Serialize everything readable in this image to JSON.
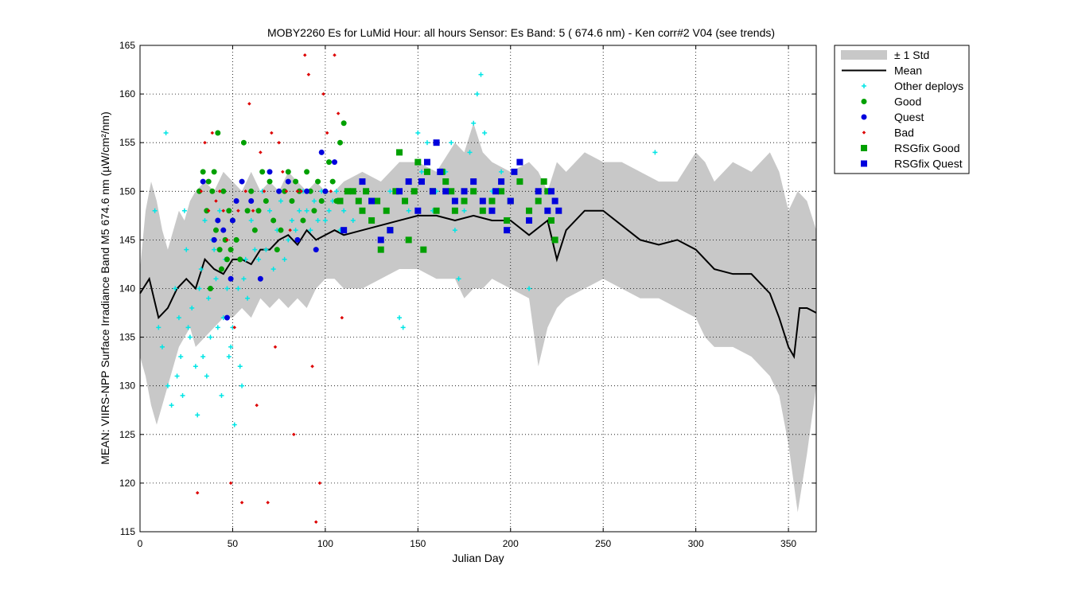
{
  "chart_data": {
    "type": "scatter",
    "title": "MOBY2260   Es for LuMid  Hour: all hours  Sensor: Es Band: 5 ( 674.6 nm)  - Ken corr#2 V04 (see trends)",
    "xlabel": "Julian Day",
    "ylabel": "MEAN: VIIRS-NPP Surface Irradiance Band M5 674.6 nm (µW/cm²/nm)",
    "xlim": [
      0,
      365
    ],
    "ylim": [
      115,
      165
    ],
    "xticks": [
      0,
      50,
      100,
      150,
      200,
      250,
      300,
      350
    ],
    "yticks": [
      115,
      120,
      125,
      130,
      135,
      140,
      145,
      150,
      155,
      160,
      165
    ],
    "grid": true,
    "legend_position": "outside-top-right",
    "legend": [
      {
        "label": "± 1 Std",
        "kind": "patch",
        "color": "#c8c8c8"
      },
      {
        "label": "Mean",
        "kind": "line",
        "color": "#000000"
      },
      {
        "label": "Other deploys",
        "kind": "plus",
        "color": "#00e5e5"
      },
      {
        "label": "Good",
        "kind": "circle",
        "color": "#00a000"
      },
      {
        "label": "Quest",
        "kind": "circle",
        "color": "#0000dd"
      },
      {
        "label": "Bad",
        "kind": "diamond",
        "color": "#dd0000"
      },
      {
        "label": "RSGfix Good",
        "kind": "square",
        "color": "#00a000"
      },
      {
        "label": "RSGfix Quest",
        "kind": "square",
        "color": "#0000dd"
      }
    ],
    "mean": {
      "x": [
        0,
        5,
        10,
        15,
        20,
        25,
        30,
        35,
        40,
        45,
        50,
        55,
        60,
        65,
        70,
        75,
        80,
        85,
        90,
        95,
        100,
        105,
        110,
        120,
        130,
        140,
        150,
        160,
        170,
        180,
        190,
        200,
        210,
        220,
        225,
        230,
        240,
        250,
        260,
        270,
        280,
        290,
        300,
        310,
        320,
        330,
        340,
        345,
        350,
        353,
        356,
        360,
        365
      ],
      "y": [
        139.5,
        141,
        137,
        138,
        140,
        141,
        140,
        143,
        142,
        141.5,
        143,
        143,
        142.5,
        144,
        144,
        145,
        145.5,
        144.5,
        146,
        145,
        145.5,
        146,
        145.5,
        146,
        146.5,
        147,
        147.5,
        147.5,
        147,
        147.5,
        147,
        147,
        145.5,
        147,
        143,
        146,
        148,
        148,
        146.5,
        145,
        144.5,
        145,
        144,
        142,
        141.5,
        141.5,
        139.5,
        137,
        134,
        133,
        138,
        138,
        137.5
      ]
    },
    "std_upper": {
      "x": [
        0,
        3,
        6,
        9,
        12,
        15,
        18,
        21,
        24,
        27,
        30,
        35,
        40,
        45,
        50,
        55,
        60,
        65,
        70,
        75,
        80,
        85,
        90,
        95,
        100,
        105,
        110,
        120,
        130,
        140,
        150,
        160,
        170,
        175,
        180,
        185,
        190,
        200,
        210,
        215,
        220,
        225,
        230,
        240,
        250,
        260,
        270,
        280,
        290,
        300,
        305,
        310,
        320,
        330,
        340,
        345,
        350,
        355,
        360,
        365
      ],
      "y": [
        142,
        148,
        151,
        149,
        146,
        144,
        146,
        148,
        147,
        149,
        150,
        151,
        150,
        152,
        151,
        150,
        152,
        150,
        151,
        150,
        152,
        151,
        150,
        151,
        150,
        150,
        151,
        152,
        151,
        153,
        153,
        152,
        155,
        154,
        157,
        154,
        153,
        152,
        153,
        152,
        150,
        153,
        152,
        154,
        153,
        153,
        152,
        151,
        151,
        154,
        153,
        151,
        153,
        152,
        154,
        152,
        148,
        150,
        149,
        146
      ]
    },
    "std_lower": {
      "x": [
        0,
        3,
        6,
        9,
        12,
        15,
        18,
        21,
        24,
        27,
        30,
        35,
        40,
        45,
        50,
        55,
        60,
        65,
        70,
        75,
        80,
        85,
        90,
        95,
        100,
        105,
        110,
        120,
        130,
        140,
        150,
        160,
        170,
        175,
        180,
        185,
        190,
        200,
        210,
        215,
        220,
        225,
        230,
        240,
        250,
        260,
        270,
        280,
        290,
        300,
        305,
        310,
        320,
        330,
        340,
        345,
        350,
        355,
        360,
        365
      ],
      "y": [
        133,
        131,
        128,
        126,
        128,
        130,
        132,
        134,
        135,
        136,
        134,
        135,
        136,
        137,
        137,
        138,
        137,
        139,
        138,
        139,
        138,
        139,
        138,
        140,
        141,
        141,
        140,
        140,
        141,
        142,
        142,
        141,
        141,
        139,
        140,
        140,
        141,
        140,
        139,
        132,
        136,
        138,
        139,
        140,
        141,
        140,
        139,
        139,
        138,
        137,
        135,
        134,
        134,
        133,
        131,
        129,
        124,
        117,
        123,
        130
      ]
    },
    "series": [
      {
        "name": "Other deploys",
        "marker": "plus",
        "color": "#00e5e5",
        "x": [
          8,
          10,
          12,
          14,
          15,
          17,
          19,
          20,
          21,
          22,
          23,
          24,
          25,
          26,
          27,
          28,
          30,
          31,
          32,
          33,
          34,
          35,
          36,
          37,
          38,
          39,
          40,
          41,
          42,
          43,
          44,
          45,
          46,
          47,
          48,
          49,
          50,
          51,
          52,
          53,
          54,
          55,
          56,
          57,
          58,
          60,
          62,
          64,
          66,
          68,
          70,
          72,
          74,
          76,
          78,
          80,
          82,
          84,
          86,
          88,
          90,
          92,
          94,
          96,
          98,
          100,
          102,
          104,
          106,
          108,
          110,
          115,
          120,
          125,
          130,
          135,
          140,
          142,
          145,
          150,
          152,
          155,
          158,
          160,
          165,
          168,
          170,
          172,
          175,
          178,
          180,
          182,
          184,
          186,
          190,
          195,
          200,
          205,
          210,
          278
        ],
        "y": [
          148,
          136,
          134,
          156,
          130,
          128,
          140,
          131,
          137,
          133,
          129,
          148,
          144,
          136,
          135,
          138,
          132,
          127,
          140,
          142,
          133,
          147,
          131,
          139,
          135,
          145,
          144,
          141,
          136,
          148,
          129,
          137,
          143,
          140,
          133,
          134,
          136,
          126,
          145,
          140,
          132,
          130,
          141,
          143,
          139,
          147,
          144,
          143,
          150,
          144,
          148,
          142,
          146,
          149,
          143,
          145,
          147,
          146,
          148,
          150,
          148,
          146,
          149,
          147,
          150,
          147,
          148,
          149,
          150,
          146,
          148,
          147,
          148,
          149,
          145,
          150,
          137,
          136,
          148,
          156,
          152,
          155,
          148,
          150,
          152,
          155,
          146,
          141,
          148,
          154,
          157,
          160,
          162,
          156,
          150,
          152,
          149,
          151,
          140,
          154
        ]
      },
      {
        "name": "Good",
        "marker": "circle",
        "color": "#00a000",
        "x": [
          32,
          34,
          36,
          37,
          38,
          39,
          40,
          41,
          42,
          43,
          44,
          45,
          46,
          47,
          48,
          49,
          50,
          52,
          54,
          56,
          58,
          60,
          62,
          64,
          66,
          68,
          70,
          72,
          74,
          76,
          78,
          80,
          82,
          84,
          86,
          88,
          90,
          92,
          94,
          96,
          98,
          100,
          102,
          104,
          106,
          108,
          110
        ],
        "y": [
          150,
          152,
          148,
          151,
          140,
          150,
          152,
          146,
          156,
          144,
          142,
          150,
          145,
          143,
          148,
          144,
          147,
          145,
          143,
          155,
          148,
          150,
          146,
          148,
          152,
          149,
          151,
          147,
          144,
          146,
          150,
          152,
          149,
          151,
          150,
          147,
          152,
          150,
          148,
          151,
          149,
          150,
          153,
          151,
          149,
          155,
          157
        ]
      },
      {
        "name": "Quest",
        "marker": "circle",
        "color": "#0000dd",
        "x": [
          34,
          40,
          42,
          45,
          47,
          49,
          50,
          52,
          55,
          60,
          65,
          70,
          75,
          80,
          85,
          90,
          95,
          98,
          100,
          105
        ],
        "y": [
          151,
          145,
          147,
          146,
          137,
          141,
          147,
          149,
          151,
          149,
          141,
          152,
          150,
          151,
          145,
          150,
          144,
          154,
          150,
          153
        ]
      },
      {
        "name": "Bad",
        "marker": "diamond",
        "color": "#dd0000",
        "x": [
          31,
          33,
          35,
          37,
          39,
          41,
          43,
          45,
          47,
          49,
          51,
          53,
          55,
          57,
          59,
          61,
          63,
          65,
          67,
          69,
          71,
          73,
          75,
          77,
          79,
          81,
          83,
          85,
          87,
          89,
          91,
          93,
          95,
          97,
          99,
          101,
          103,
          105,
          107,
          109,
          111
        ],
        "y": [
          119,
          150,
          155,
          148,
          156,
          149,
          150,
          148,
          145,
          120,
          136,
          148,
          118,
          150,
          159,
          148,
          128,
          154,
          150,
          118,
          156,
          134,
          155,
          152,
          150,
          146,
          125,
          150,
          150,
          164,
          162,
          132,
          116,
          120,
          160,
          156,
          150,
          164,
          158,
          137,
          150
        ]
      },
      {
        "name": "RSGfix Good",
        "marker": "square",
        "color": "#00a000",
        "x": [
          108,
          112,
          115,
          118,
          120,
          122,
          125,
          128,
          130,
          133,
          135,
          138,
          140,
          143,
          145,
          148,
          150,
          153,
          155,
          158,
          160,
          163,
          165,
          168,
          170,
          175,
          180,
          185,
          190,
          195,
          198,
          200,
          205,
          210,
          215,
          218,
          220,
          222,
          224
        ],
        "y": [
          149,
          150,
          150,
          149,
          148,
          150,
          147,
          149,
          144,
          148,
          146,
          150,
          154,
          149,
          145,
          150,
          153,
          144,
          152,
          150,
          148,
          152,
          151,
          150,
          148,
          149,
          150,
          148,
          149,
          150,
          147,
          149,
          151,
          148,
          149,
          151,
          150,
          147,
          145
        ]
      },
      {
        "name": "RSGfix Quest",
        "marker": "square",
        "color": "#0000dd",
        "x": [
          110,
          120,
          125,
          130,
          135,
          140,
          145,
          150,
          152,
          155,
          158,
          160,
          162,
          165,
          170,
          175,
          180,
          185,
          190,
          192,
          195,
          198,
          200,
          202,
          205,
          210,
          215,
          220,
          222,
          224,
          226
        ],
        "y": [
          146,
          151,
          149,
          145,
          146,
          150,
          151,
          148,
          151,
          153,
          150,
          155,
          152,
          150,
          149,
          150,
          151,
          149,
          148,
          150,
          151,
          146,
          149,
          152,
          153,
          147,
          150,
          148,
          150,
          149,
          148
        ]
      }
    ]
  }
}
